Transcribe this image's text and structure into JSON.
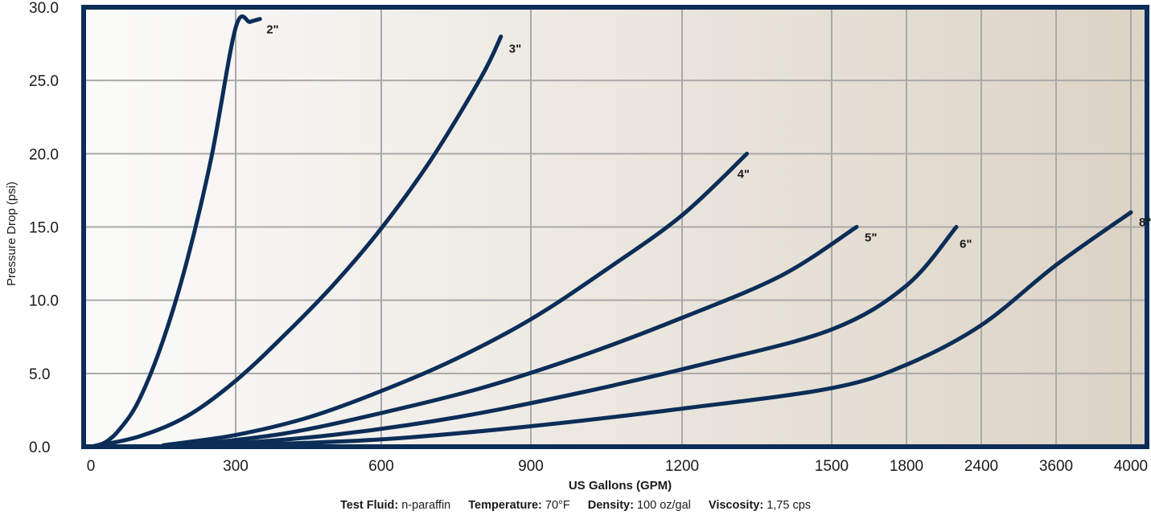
{
  "chart_data": {
    "type": "line",
    "xlabel": "US Gallons (GPM)",
    "ylabel": "Pressure Drop (psi)",
    "x_tick_labels": [
      "0",
      "300",
      "600",
      "900",
      "1200",
      "1500",
      "1800",
      "2400",
      "3600",
      "4000"
    ],
    "y_tick_labels": [
      "0.0",
      "5.0",
      "10.0",
      "15.0",
      "20.0",
      "25.0",
      "30.0"
    ],
    "ylim": [
      0,
      30
    ],
    "grid": true,
    "x_scale": "non-uniform (ticks 0–1500 every 300, then 1800, 2400, 3600, 4000)",
    "colors": {
      "curve": "#0b2d57",
      "frame": "#0b2d57",
      "gridline": "#a9a9a9",
      "background_left": "#fbfbfa",
      "background_right": "#dcd3c5"
    },
    "series": [
      {
        "name": "2\"",
        "x": [
          0,
          30,
          60,
          100,
          150,
          200,
          250,
          300,
          330,
          350
        ],
        "y": [
          0,
          0.3,
          1.2,
          3.2,
          7.3,
          12.8,
          19.8,
          28.6,
          29.0,
          29.2
        ]
      },
      {
        "name": "3\"",
        "x": [
          0,
          100,
          200,
          300,
          400,
          500,
          600,
          700,
          800,
          840
        ],
        "y": [
          0,
          0.7,
          2.1,
          4.5,
          7.6,
          11.0,
          14.9,
          19.6,
          25.2,
          28.0
        ]
      },
      {
        "name": "4\"",
        "x": [
          150,
          300,
          450,
          600,
          750,
          900,
          1050,
          1200,
          1330
        ],
        "y": [
          0.1,
          0.8,
          2.0,
          3.8,
          6.0,
          8.7,
          12.1,
          15.8,
          20.0
        ]
      },
      {
        "name": "5\"",
        "x": [
          200,
          400,
          600,
          800,
          1000,
          1200,
          1400,
          1600
        ],
        "y": [
          0.1,
          0.9,
          2.3,
          4.0,
          6.2,
          8.8,
          11.7,
          15.0
        ]
      },
      {
        "name": "6\"",
        "x": [
          250,
          500,
          750,
          1000,
          1250,
          1500,
          1800,
          2200
        ],
        "y": [
          0.1,
          0.8,
          2.0,
          3.7,
          5.7,
          8.0,
          11.0,
          15.0
        ]
      },
      {
        "name": "8\"",
        "x": [
          300,
          600,
          900,
          1200,
          1500,
          1800,
          2400,
          3600,
          4000
        ],
        "y": [
          0.1,
          0.5,
          1.4,
          2.6,
          4.0,
          5.6,
          8.3,
          12.4,
          16.0
        ]
      }
    ]
  },
  "footnote": {
    "test_fluid_label": "Test Fluid:",
    "test_fluid_value": "n-paraffin",
    "temperature_label": "Temperature:",
    "temperature_value": "70°F",
    "density_label": "Density:",
    "density_value": "100 oz/gal",
    "viscosity_label": "Viscosity:",
    "viscosity_value": "1,75 cps"
  }
}
